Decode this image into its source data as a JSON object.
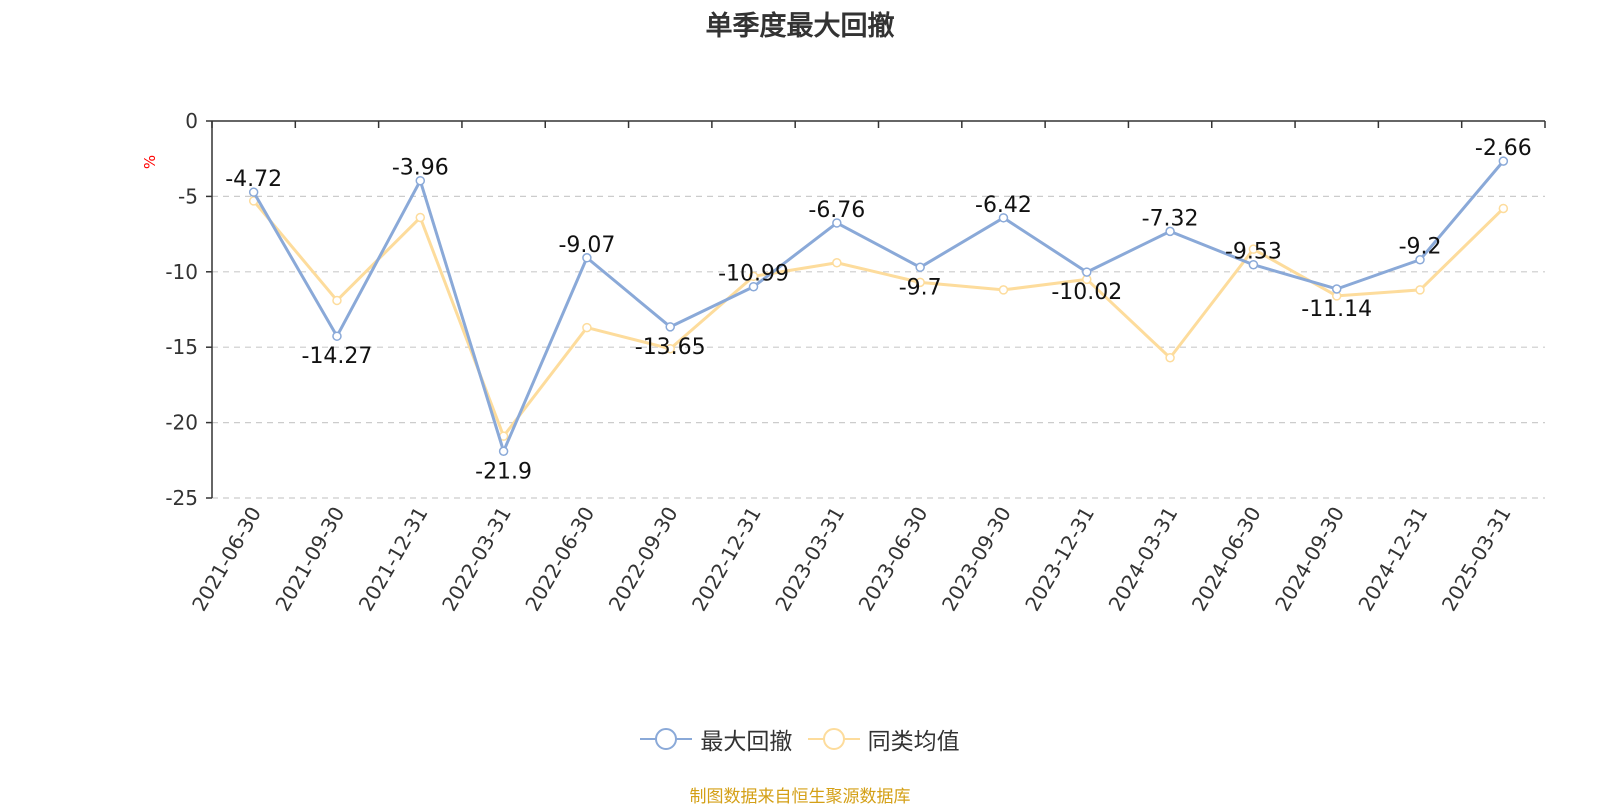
{
  "chart_data": {
    "type": "line",
    "title": "单季度最大回撤",
    "ylabel": "%",
    "ylim": [
      -25,
      0
    ],
    "yticks": [
      0,
      -5,
      -10,
      -15,
      -20,
      -25
    ],
    "grid": true,
    "legend_position": "bottom",
    "categories": [
      "2021-06-30",
      "2021-09-30",
      "2021-12-31",
      "2022-03-31",
      "2022-06-30",
      "2022-09-30",
      "2022-12-31",
      "2023-03-31",
      "2023-06-30",
      "2023-09-30",
      "2023-12-31",
      "2024-03-31",
      "2024-06-30",
      "2024-09-30",
      "2024-12-31",
      "2025-03-31"
    ],
    "series": [
      {
        "name": "最大回撤",
        "color": "#8aa9d8",
        "values": [
          -4.72,
          -14.27,
          -3.96,
          -21.9,
          -9.07,
          -13.65,
          -10.99,
          -6.76,
          -9.7,
          -6.42,
          -10.02,
          -7.32,
          -9.53,
          -11.14,
          -9.2,
          -2.66
        ],
        "labels": [
          "-4.72",
          "-14.27",
          "-3.96",
          "-21.9",
          "-9.07",
          "-13.65",
          "-10.99",
          "-6.76",
          "-9.7",
          "-6.42",
          "-10.02",
          "-7.32",
          "-9.53",
          "-11.14",
          "-9.2",
          "-2.66"
        ]
      },
      {
        "name": "同类均值",
        "color": "#fddc9c",
        "values": [
          -5.3,
          -11.9,
          -6.4,
          -20.9,
          -13.7,
          -15.1,
          -10.3,
          -9.4,
          -10.7,
          -11.2,
          -10.5,
          -15.7,
          -8.5,
          -11.6,
          -11.2,
          -5.8
        ]
      }
    ]
  },
  "source_text": "制图数据来自恒生聚源数据库",
  "source_color": "#d4a017",
  "ylabel_color": "#ff0000"
}
